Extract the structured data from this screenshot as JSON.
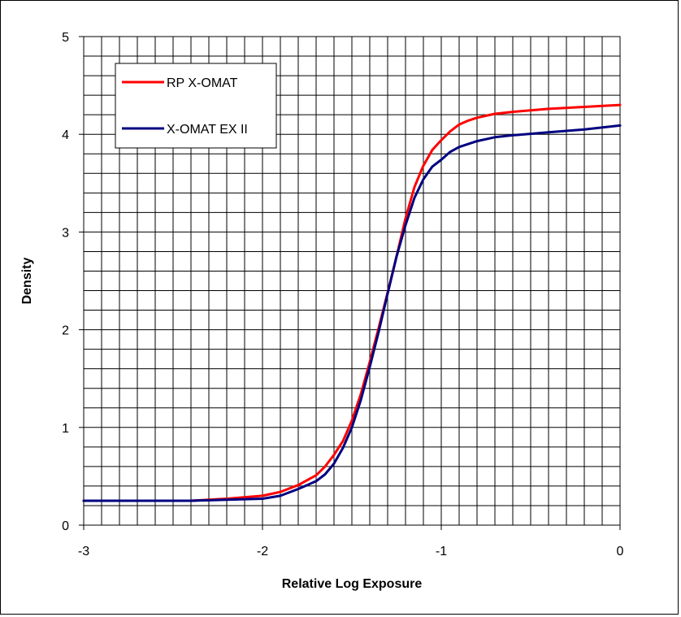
{
  "chart_data": {
    "type": "line",
    "title": "",
    "xlabel": "Relative Log Exposure",
    "ylabel": "Density",
    "xlim": [
      -3,
      0
    ],
    "ylim": [
      0,
      5
    ],
    "x_ticks": [
      "-3",
      "-2",
      "-1",
      "0"
    ],
    "y_ticks": [
      "0",
      "1",
      "2",
      "3",
      "4",
      "5"
    ],
    "grid": true,
    "legend_position": "top-left",
    "series": [
      {
        "name": "RP X-OMAT",
        "color": "#ff0000",
        "x": [
          -3.0,
          -2.4,
          -2.2,
          -2.0,
          -1.9,
          -1.8,
          -1.7,
          -1.65,
          -1.6,
          -1.55,
          -1.5,
          -1.45,
          -1.4,
          -1.35,
          -1.3,
          -1.25,
          -1.2,
          -1.15,
          -1.1,
          -1.05,
          -1.0,
          -0.95,
          -0.9,
          -0.85,
          -0.8,
          -0.7,
          -0.6,
          -0.4,
          -0.2,
          0.0
        ],
        "y": [
          0.25,
          0.25,
          0.27,
          0.3,
          0.34,
          0.41,
          0.51,
          0.6,
          0.72,
          0.86,
          1.07,
          1.34,
          1.67,
          2.02,
          2.38,
          2.75,
          3.14,
          3.46,
          3.68,
          3.84,
          3.94,
          4.03,
          4.1,
          4.14,
          4.17,
          4.21,
          4.23,
          4.26,
          4.28,
          4.3
        ]
      },
      {
        "name": "X-OMAT EX II",
        "color": "#000080",
        "x": [
          -3.0,
          -2.4,
          -2.2,
          -2.0,
          -1.9,
          -1.8,
          -1.7,
          -1.65,
          -1.6,
          -1.55,
          -1.5,
          -1.45,
          -1.4,
          -1.35,
          -1.3,
          -1.25,
          -1.2,
          -1.15,
          -1.1,
          -1.05,
          -1.0,
          -0.95,
          -0.9,
          -0.85,
          -0.8,
          -0.7,
          -0.6,
          -0.4,
          -0.2,
          0.0
        ],
        "y": [
          0.25,
          0.25,
          0.26,
          0.27,
          0.3,
          0.37,
          0.45,
          0.52,
          0.63,
          0.79,
          1.0,
          1.28,
          1.62,
          1.98,
          2.37,
          2.75,
          3.07,
          3.35,
          3.54,
          3.67,
          3.74,
          3.82,
          3.87,
          3.9,
          3.93,
          3.97,
          3.99,
          4.02,
          4.05,
          4.09
        ]
      }
    ]
  }
}
